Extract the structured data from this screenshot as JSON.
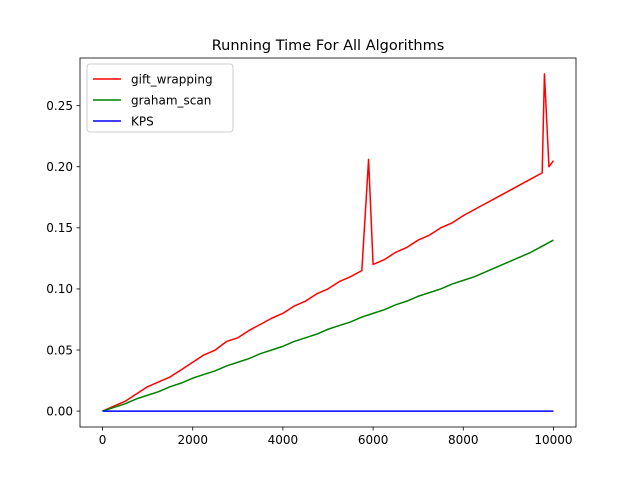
{
  "chart_data": {
    "type": "line",
    "title": "Running Time For All Algorithms",
    "xlabel": "",
    "ylabel": "",
    "xlim": [
      -500,
      10500
    ],
    "ylim": [
      -0.013,
      0.289
    ],
    "x_ticks": [
      0,
      2000,
      4000,
      6000,
      8000,
      10000
    ],
    "x_tick_labels": [
      "0",
      "2000",
      "4000",
      "6000",
      "8000",
      "10000"
    ],
    "y_ticks": [
      0.0,
      0.05,
      0.1,
      0.15,
      0.2,
      0.25
    ],
    "y_tick_labels": [
      "0.00",
      "0.05",
      "0.10",
      "0.15",
      "0.20",
      "0.25"
    ],
    "grid": false,
    "legend_position": "upper-left",
    "series": [
      {
        "name": "gift_wrapping",
        "color": "#ff0000",
        "x": [
          0,
          250,
          500,
          750,
          1000,
          1250,
          1500,
          1750,
          2000,
          2250,
          2500,
          2750,
          3000,
          3250,
          3500,
          3750,
          4000,
          4250,
          4500,
          4750,
          5000,
          5250,
          5500,
          5750,
          5900,
          6000,
          6250,
          6500,
          6750,
          7000,
          7250,
          7500,
          7750,
          8000,
          8250,
          8500,
          8750,
          9000,
          9250,
          9500,
          9750,
          9800,
          9900,
          10000
        ],
        "y": [
          0.0,
          0.004,
          0.008,
          0.014,
          0.02,
          0.024,
          0.028,
          0.034,
          0.04,
          0.046,
          0.05,
          0.057,
          0.06,
          0.066,
          0.071,
          0.076,
          0.08,
          0.086,
          0.09,
          0.096,
          0.1,
          0.106,
          0.11,
          0.115,
          0.206,
          0.12,
          0.124,
          0.13,
          0.134,
          0.14,
          0.144,
          0.15,
          0.154,
          0.16,
          0.165,
          0.17,
          0.175,
          0.18,
          0.185,
          0.19,
          0.195,
          0.276,
          0.2,
          0.205
        ]
      },
      {
        "name": "graham_scan",
        "color": "#008000",
        "x": [
          0,
          250,
          500,
          750,
          1000,
          1250,
          1500,
          1750,
          2000,
          2250,
          2500,
          2750,
          3000,
          3250,
          3500,
          3750,
          4000,
          4250,
          4500,
          4750,
          5000,
          5250,
          5500,
          5750,
          6000,
          6250,
          6500,
          6750,
          7000,
          7250,
          7500,
          7750,
          8000,
          8250,
          8500,
          8750,
          9000,
          9250,
          9500,
          9750,
          10000
        ],
        "y": [
          0.0,
          0.003,
          0.006,
          0.01,
          0.013,
          0.016,
          0.02,
          0.023,
          0.027,
          0.03,
          0.033,
          0.037,
          0.04,
          0.043,
          0.047,
          0.05,
          0.053,
          0.057,
          0.06,
          0.063,
          0.067,
          0.07,
          0.073,
          0.077,
          0.08,
          0.083,
          0.087,
          0.09,
          0.094,
          0.097,
          0.1,
          0.104,
          0.107,
          0.11,
          0.114,
          0.118,
          0.122,
          0.126,
          0.13,
          0.135,
          0.14
        ]
      },
      {
        "name": "KPS",
        "color": "#0000ff",
        "x": [
          0,
          10000
        ],
        "y": [
          0.0,
          0.0
        ]
      }
    ]
  }
}
